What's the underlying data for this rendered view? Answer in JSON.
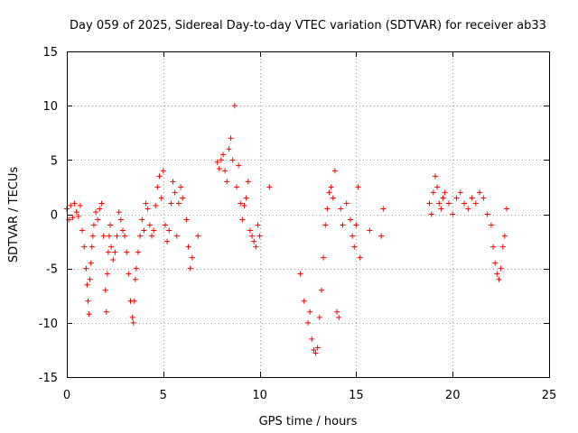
{
  "chart_data": {
    "type": "scatter",
    "title": "Day 059 of 2025, Sidereal Day-to-day VTEC variation (SDTVAR) for receiver ab33",
    "xlabel": "GPS time / hours",
    "ylabel": "SDTVAR / TECUs",
    "xlim": [
      0,
      25
    ],
    "ylim": [
      -15,
      15
    ],
    "xticks": [
      0,
      5,
      10,
      15,
      20,
      25
    ],
    "yticks": [
      -15,
      -10,
      -5,
      0,
      5,
      10,
      15
    ],
    "grid": true,
    "marker": "plus",
    "color": "#ff0000",
    "series": [
      {
        "name": "SDTVAR",
        "x": [
          0.0,
          0.1,
          0.2,
          0.3,
          0.4,
          0.5,
          0.6,
          0.7,
          0.8,
          0.9,
          1.0,
          1.05,
          1.1,
          1.15,
          1.2,
          1.25,
          1.3,
          1.35,
          1.4,
          1.5,
          1.6,
          1.7,
          1.8,
          1.9,
          2.0,
          2.05,
          2.1,
          2.15,
          2.2,
          2.25,
          2.3,
          2.4,
          2.5,
          2.6,
          2.7,
          2.8,
          2.9,
          3.0,
          3.1,
          3.2,
          3.3,
          3.4,
          3.45,
          3.5,
          3.55,
          3.6,
          3.7,
          3.8,
          3.9,
          4.0,
          4.1,
          4.2,
          4.3,
          4.4,
          4.5,
          4.6,
          4.7,
          4.8,
          4.9,
          5.0,
          5.1,
          5.2,
          5.3,
          5.4,
          5.5,
          5.6,
          5.7,
          5.8,
          5.9,
          6.0,
          6.2,
          6.3,
          6.4,
          6.5,
          6.8,
          7.8,
          7.9,
          8.0,
          8.1,
          8.2,
          8.3,
          8.4,
          8.5,
          8.6,
          8.7,
          8.8,
          8.9,
          9.0,
          9.1,
          9.2,
          9.3,
          9.4,
          9.5,
          9.6,
          9.7,
          9.8,
          9.9,
          10.0,
          10.5,
          12.1,
          12.3,
          12.5,
          12.6,
          12.7,
          12.8,
          12.9,
          13.0,
          13.1,
          13.2,
          13.3,
          13.4,
          13.5,
          13.6,
          13.7,
          13.8,
          13.9,
          14.0,
          14.1,
          14.2,
          14.3,
          14.5,
          14.7,
          14.8,
          14.9,
          15.0,
          15.1,
          15.2,
          15.7,
          16.3,
          16.4,
          18.8,
          18.9,
          19.0,
          19.1,
          19.2,
          19.3,
          19.4,
          19.5,
          19.6,
          19.8,
          20.0,
          20.2,
          20.4,
          20.6,
          20.8,
          21.0,
          21.2,
          21.4,
          21.6,
          21.8,
          22.0,
          22.1,
          22.2,
          22.3,
          22.4,
          22.5,
          22.6,
          22.7,
          22.8
        ],
        "y": [
          0.5,
          -0.5,
          0.8,
          -0.3,
          1.0,
          0.2,
          -0.2,
          0.8,
          -1.5,
          -3.0,
          -5.0,
          -6.5,
          -8.0,
          -9.2,
          -6.0,
          -4.5,
          -3.0,
          -2.0,
          -1.0,
          0.2,
          -0.5,
          0.5,
          1.0,
          -2.0,
          -7.0,
          -9.0,
          -5.5,
          -3.5,
          -2.0,
          -1.0,
          -3.0,
          -4.2,
          -3.5,
          -2.0,
          0.2,
          -0.5,
          -1.5,
          -2.0,
          -3.5,
          -5.5,
          -8.0,
          -9.5,
          -10.0,
          -8.0,
          -6.0,
          -5.0,
          -3.5,
          -2.0,
          -0.5,
          -1.5,
          1.0,
          0.5,
          -1.0,
          -2.0,
          -1.5,
          0.8,
          2.5,
          3.5,
          1.5,
          4.0,
          -1.0,
          -2.5,
          -1.5,
          1.0,
          3.0,
          2.0,
          -2.0,
          1.0,
          2.5,
          1.5,
          -0.5,
          -3.0,
          -5.0,
          -4.0,
          -2.0,
          4.8,
          4.2,
          5.0,
          5.5,
          4.0,
          3.0,
          6.0,
          7.0,
          5.0,
          10.0,
          2.5,
          4.5,
          1.0,
          -0.5,
          0.8,
          1.5,
          3.0,
          -1.5,
          -2.0,
          -2.5,
          -3.0,
          -1.0,
          -2.0,
          2.5,
          -5.5,
          -8.0,
          -10.0,
          -9.0,
          -11.5,
          -12.5,
          -12.8,
          -12.3,
          -9.5,
          -7.0,
          -4.0,
          -1.0,
          0.5,
          2.0,
          2.5,
          1.5,
          4.0,
          -9.0,
          -9.5,
          0.5,
          -1.0,
          1.0,
          -0.5,
          -2.0,
          -3.0,
          -1.0,
          2.5,
          -4.0,
          -1.5,
          -2.0,
          0.5,
          1.0,
          0.0,
          2.0,
          3.5,
          2.5,
          1.0,
          0.5,
          1.5,
          2.0,
          1.0,
          0.0,
          1.5,
          2.0,
          1.0,
          0.5,
          1.5,
          1.0,
          2.0,
          1.5,
          0.0,
          -1.0,
          -3.0,
          -4.5,
          -5.5,
          -6.0,
          -5.0,
          -3.0,
          -2.0,
          0.5
        ]
      }
    ]
  }
}
